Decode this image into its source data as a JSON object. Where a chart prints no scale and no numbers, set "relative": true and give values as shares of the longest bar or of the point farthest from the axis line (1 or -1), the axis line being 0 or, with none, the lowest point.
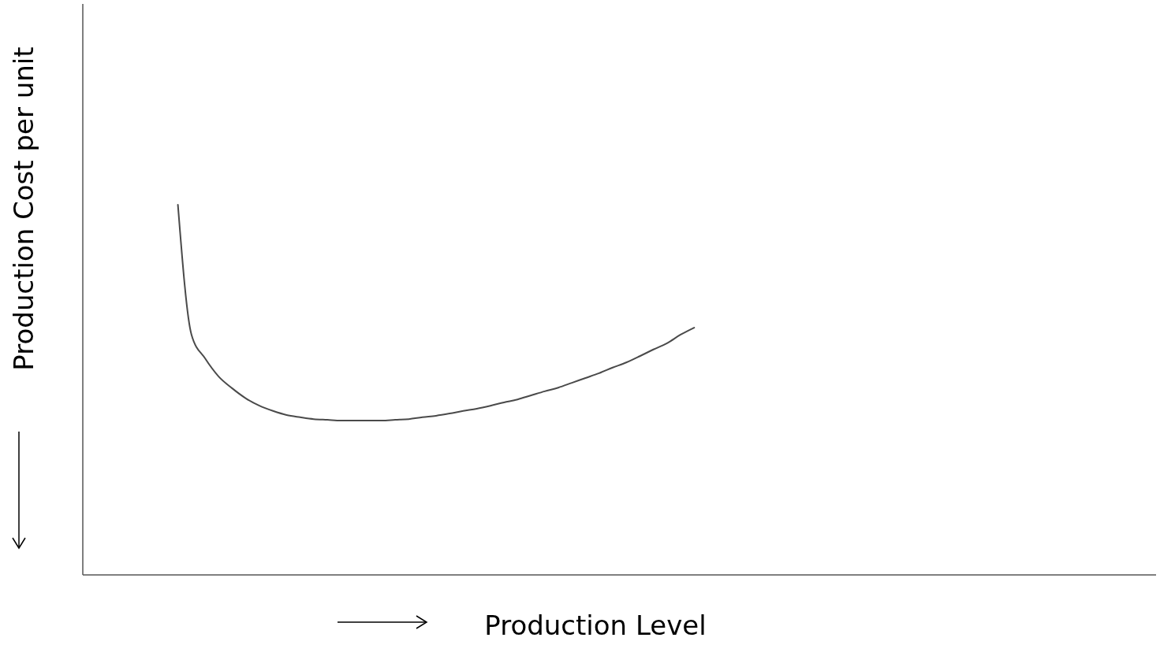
{
  "chart_data": {
    "type": "line",
    "relative": true,
    "xlabel": "Production Level",
    "ylabel": "Production Cost per unit",
    "categories": [
      null,
      null,
      null,
      null,
      null,
      null,
      null,
      null,
      null,
      null,
      null,
      null,
      null,
      null,
      null,
      null,
      null,
      null,
      null,
      null,
      null,
      null,
      null,
      null,
      null,
      null,
      null,
      null,
      null,
      null,
      null,
      null,
      null,
      null,
      null,
      null,
      null,
      null,
      null,
      null,
      null,
      null,
      null,
      null,
      null,
      null,
      null,
      null,
      null,
      null,
      null,
      null,
      null,
      null,
      null,
      null,
      null,
      null,
      null,
      null,
      null,
      null,
      null,
      null,
      null,
      null,
      null,
      null,
      null,
      null,
      null,
      null,
      null,
      null,
      null,
      null,
      null,
      null,
      null,
      null
    ],
    "series": [
      {
        "color": "#4a4a4a",
        "values": [
          null,
          null,
          null,
          null,
          null,
          null,
          null,
          1,
          0.649,
          0.585,
          0.536,
          0.504,
          0.477,
          0.457,
          0.443,
          0.432,
          0.426,
          0.421,
          0.419,
          0.417,
          0.417,
          0.417,
          0.417,
          0.419,
          0.421,
          0.426,
          0.43,
          0.436,
          0.443,
          0.449,
          0.457,
          0.466,
          0.474,
          0.485,
          0.496,
          0.506,
          0.519,
          0.532,
          0.545,
          0.56,
          0.574,
          0.591,
          0.609,
          0.626,
          0.649,
          0.668,
          null,
          null,
          null,
          null,
          null,
          null,
          null,
          null,
          null,
          null,
          null,
          null,
          null,
          null,
          null,
          null,
          null,
          null,
          null,
          null,
          null,
          null,
          null,
          null,
          null,
          null,
          null,
          null,
          null,
          null,
          null,
          null,
          null,
          null
        ]
      }
    ],
    "marker": "none",
    "line_style": "solid"
  }
}
